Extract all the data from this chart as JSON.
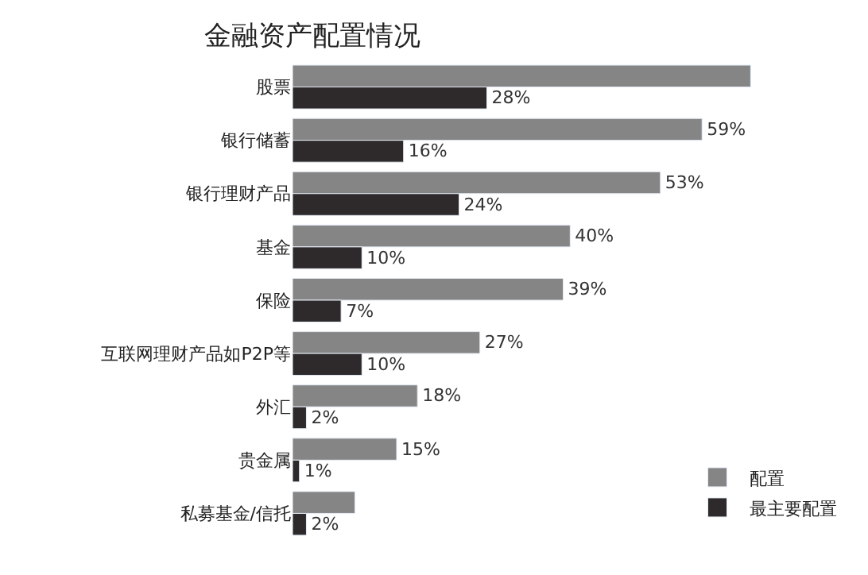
{
  "chart_data": {
    "type": "bar",
    "orientation": "horizontal",
    "title": "金融资产配置情况",
    "categories": [
      "股票",
      "银行储蓄",
      "银行理财产品",
      "基金",
      "保险",
      "互联网理财产品如P2P等",
      "外汇",
      "贵金属",
      "私募基金/信托"
    ],
    "series": [
      {
        "name": "配置",
        "color": "#858585",
        "values": [
          66,
          59,
          53,
          40,
          39,
          27,
          18,
          15,
          9
        ],
        "value_labels": [
          null,
          "59%",
          "53%",
          "40%",
          "39%",
          "27%",
          "18%",
          "15%",
          null
        ]
      },
      {
        "name": "最主要配置",
        "color": "#2e2a2b",
        "values": [
          28,
          16,
          24,
          10,
          7,
          10,
          2,
          1,
          2
        ],
        "value_labels": [
          "28%",
          "16%",
          "24%",
          "10%",
          "7%",
          "10%",
          "2%",
          "1%",
          "2%"
        ]
      }
    ],
    "legend": "bottom right"
  }
}
